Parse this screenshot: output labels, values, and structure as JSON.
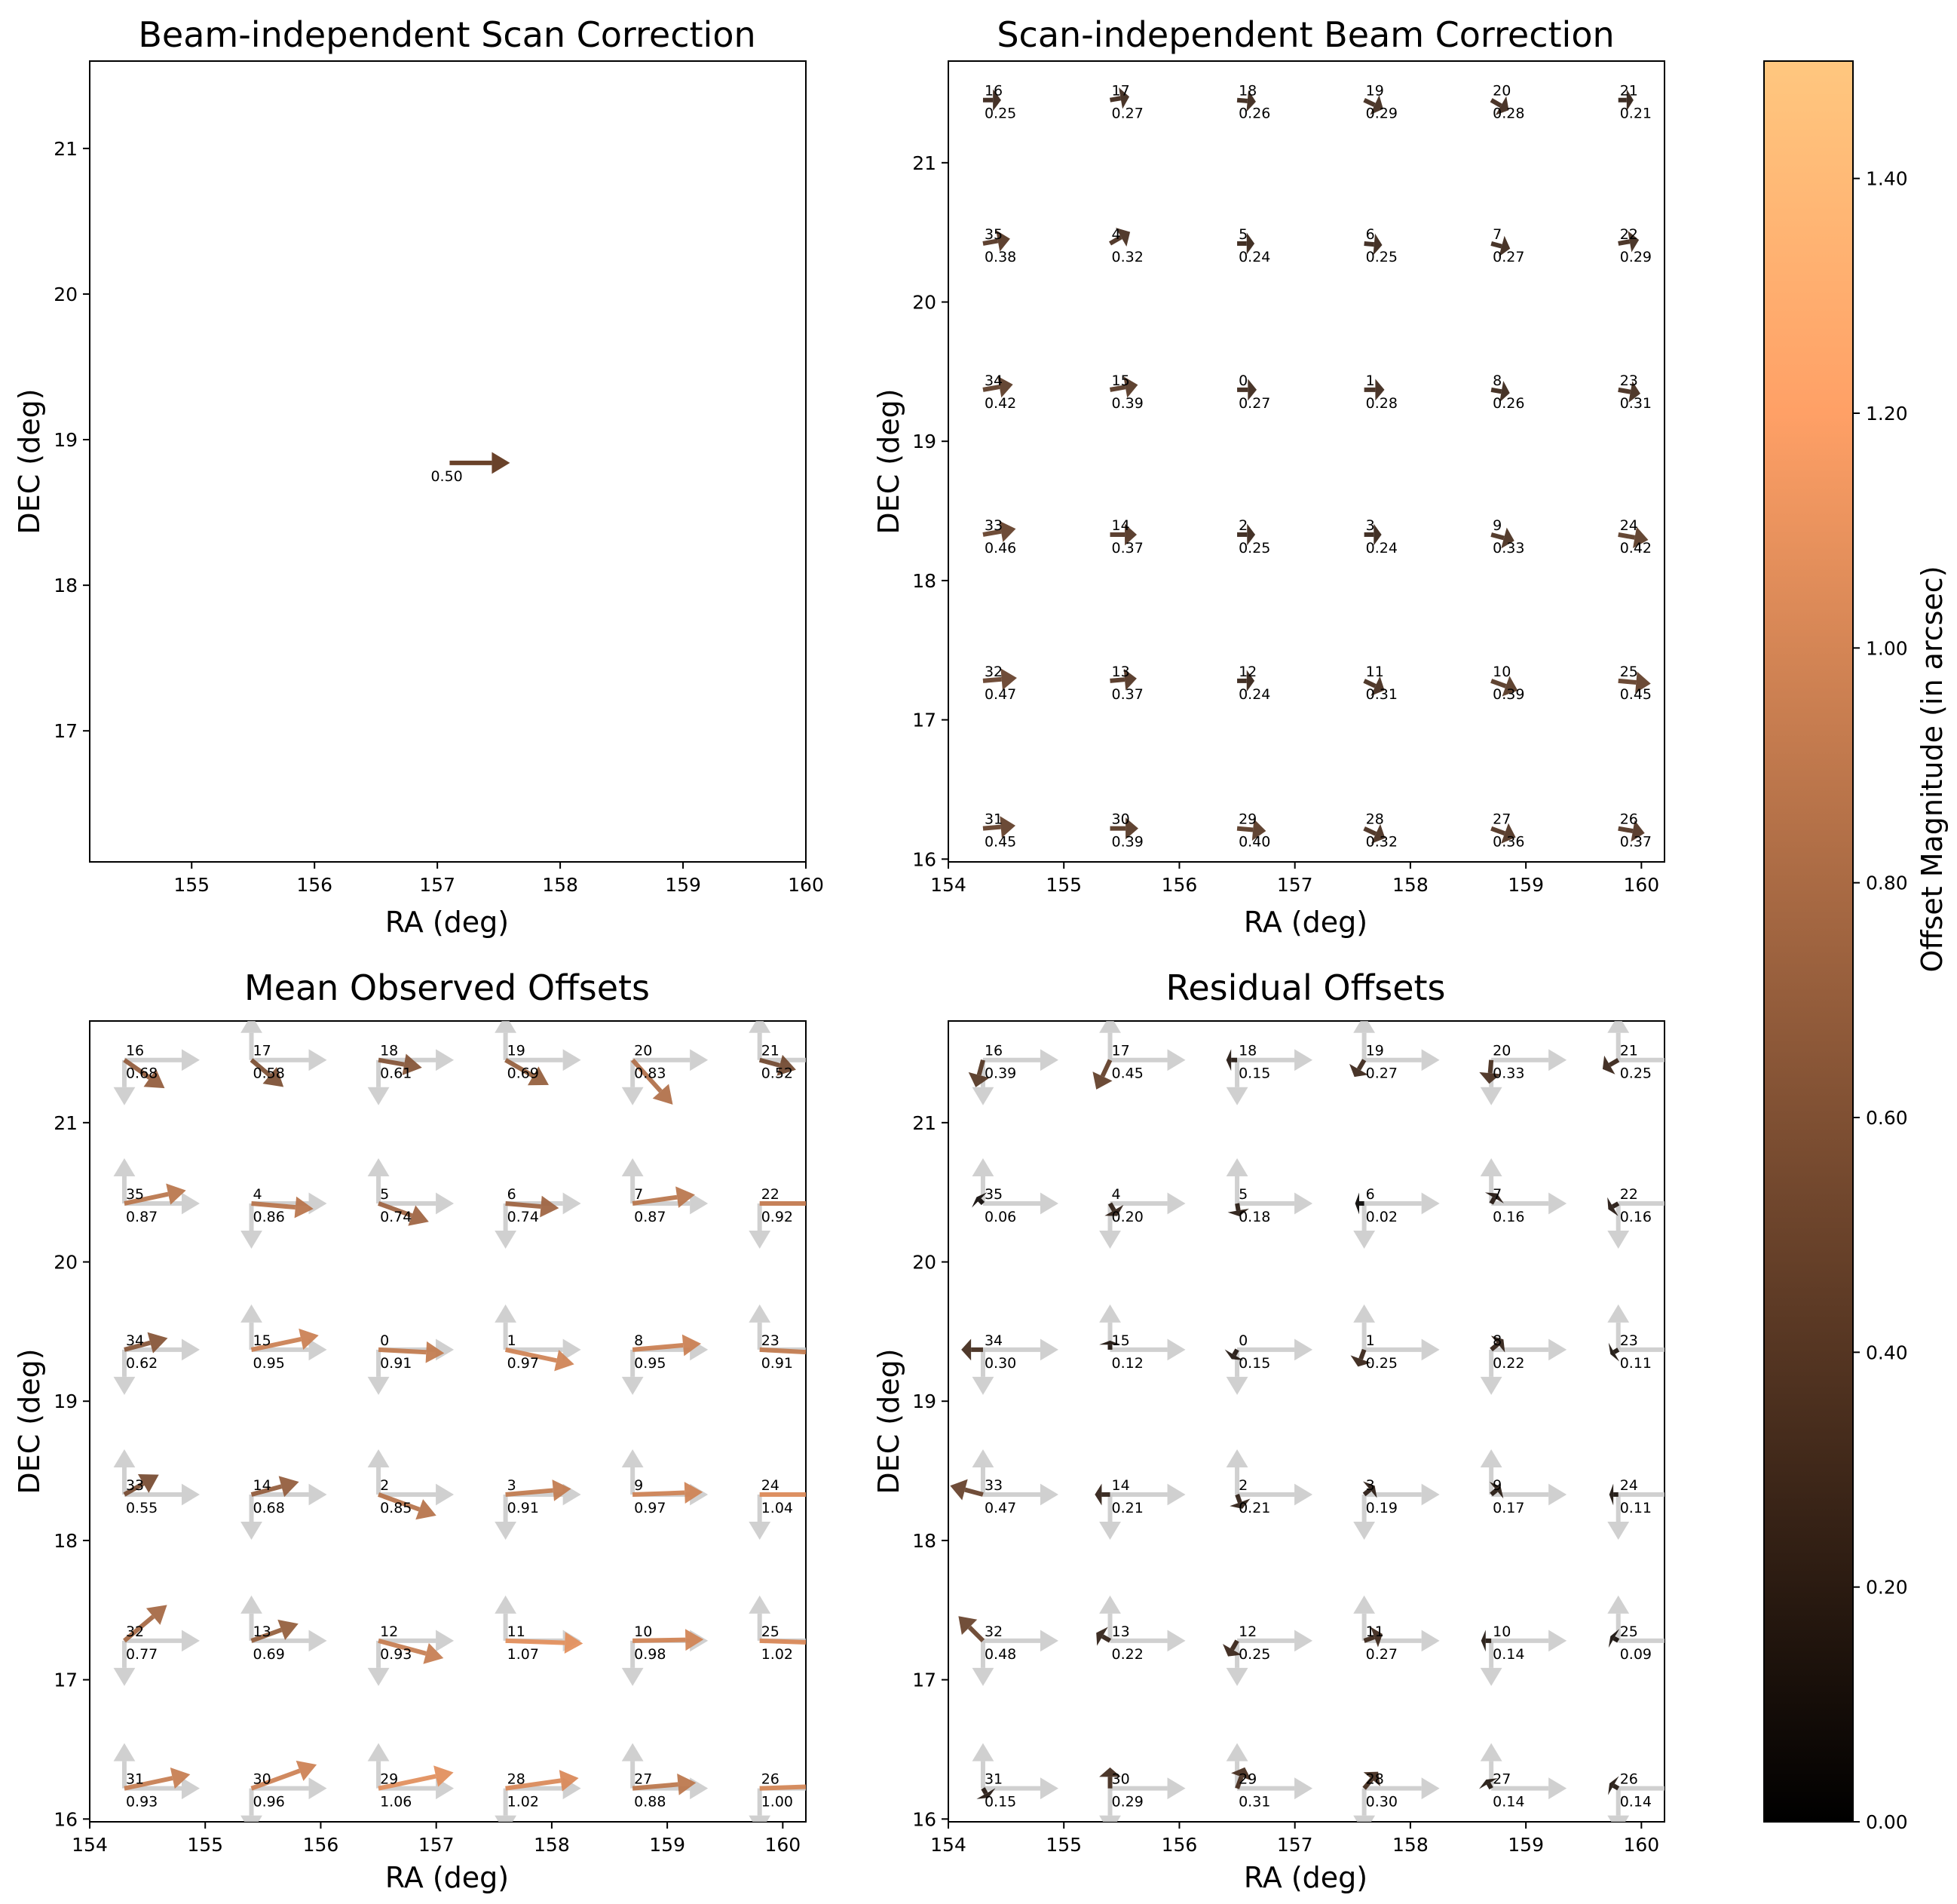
{
  "chart_data": {
    "type": "quiver",
    "colorbar": {
      "label": "Offset Magnitude (in arcsec)",
      "range": [
        0,
        1.5
      ],
      "ticks": [
        "0.00",
        "0.20",
        "0.40",
        "0.60",
        "0.80",
        "1.00",
        "1.20",
        "1.40"
      ],
      "colormap": "copper",
      "stops": [
        "#000000",
        "#ffc77f"
      ]
    },
    "axes_ranges": {
      "top_left": {
        "x": [
          154.17,
          160
        ],
        "y": [
          16.1,
          21.6
        ]
      },
      "others": {
        "x": [
          154,
          160.2
        ],
        "y": [
          15.98,
          21.73
        ]
      }
    },
    "x_ticks": [
      "154",
      "155",
      "156",
      "157",
      "158",
      "159",
      "160"
    ],
    "x_ticks_top_left": [
      "155",
      "156",
      "157",
      "158",
      "159",
      "160"
    ],
    "y_ticks": [
      "16",
      "17",
      "18",
      "19",
      "20",
      "21"
    ],
    "y_ticks_top_left": [
      "17",
      "18",
      "19",
      "20",
      "21"
    ],
    "grid": false,
    "panels": [
      {
        "id": "top_left",
        "title": "Beam-independent Scan Correction",
        "xlabel": "RA (deg)",
        "ylabel": "DEC (deg)",
        "vectors": [
          {
            "ra": 157.1,
            "dec": 18.84,
            "dx": 0.5,
            "dy": 0.0,
            "label": "0.50",
            "mag": 0.5
          }
        ]
      },
      {
        "id": "top_right",
        "title": "Scan-independent Beam Correction",
        "xlabel": "RA (deg)",
        "ylabel": "DEC (deg)",
        "grid_ra": [
          154.3,
          155.4,
          156.5,
          157.6,
          158.7,
          159.8
        ],
        "grid_dec": [
          21.45,
          20.42,
          19.37,
          18.33,
          17.28,
          16.22
        ],
        "beams": [
          [
            "16",
            "17",
            "18",
            "19",
            "20",
            "21"
          ],
          [
            "35",
            "4",
            "5",
            "6",
            "7",
            "22"
          ],
          [
            "34",
            "15",
            "0",
            "1",
            "8",
            "23"
          ],
          [
            "33",
            "14",
            "2",
            "3",
            "9",
            "24"
          ],
          [
            "32",
            "13",
            "12",
            "11",
            "10",
            "25"
          ],
          [
            "31",
            "30",
            "29",
            "28",
            "27",
            "26"
          ]
        ],
        "magnitudes": [
          [
            "0.25",
            "0.27",
            "0.26",
            "0.29",
            "0.28",
            "0.21"
          ],
          [
            "0.38",
            "0.32",
            "0.24",
            "0.25",
            "0.27",
            "0.29"
          ],
          [
            "0.42",
            "0.39",
            "0.27",
            "0.28",
            "0.26",
            "0.31"
          ],
          [
            "0.46",
            "0.37",
            "0.25",
            "0.24",
            "0.33",
            "0.42"
          ],
          [
            "0.47",
            "0.37",
            "0.24",
            "0.31",
            "0.39",
            "0.45"
          ],
          [
            "0.45",
            "0.39",
            "0.40",
            "0.32",
            "0.36",
            "0.37"
          ]
        ],
        "angles_deg": [
          [
            0,
            10,
            -5,
            -25,
            -30,
            0
          ],
          [
            10,
            30,
            0,
            -5,
            -15,
            10
          ],
          [
            10,
            10,
            0,
            0,
            -10,
            -10
          ],
          [
            10,
            0,
            0,
            0,
            -15,
            -10
          ],
          [
            5,
            5,
            0,
            -25,
            -20,
            -5
          ],
          [
            5,
            0,
            -5,
            -25,
            -20,
            -10
          ]
        ]
      },
      {
        "id": "bottom_left",
        "title": "Mean Observed Offsets",
        "xlabel": "RA (deg)",
        "ylabel": "DEC (deg)",
        "grid_ra": [
          154.3,
          155.4,
          156.5,
          157.6,
          158.7,
          159.8
        ],
        "grid_dec": [
          21.45,
          20.42,
          19.37,
          18.33,
          17.28,
          16.22
        ],
        "beams": [
          [
            "16",
            "17",
            "18",
            "19",
            "20",
            "21"
          ],
          [
            "35",
            "4",
            "5",
            "6",
            "7",
            "22"
          ],
          [
            "34",
            "15",
            "0",
            "1",
            "8",
            "23"
          ],
          [
            "33",
            "14",
            "2",
            "3",
            "9",
            "24"
          ],
          [
            "32",
            "13",
            "12",
            "11",
            "10",
            "25"
          ],
          [
            "31",
            "30",
            "29",
            "28",
            "27",
            "26"
          ]
        ],
        "magnitudes": [
          [
            "0.68",
            "0.58",
            "0.61",
            "0.69",
            "0.83",
            "0.52"
          ],
          [
            "0.87",
            "0.86",
            "0.74",
            "0.74",
            "0.87",
            "0.92"
          ],
          [
            "0.62",
            "0.95",
            "0.91",
            "0.97",
            "0.95",
            "0.91"
          ],
          [
            "0.55",
            "0.68",
            "0.85",
            "0.91",
            "0.97",
            "1.04"
          ],
          [
            "0.77",
            "0.69",
            "0.93",
            "1.07",
            "0.98",
            "1.02"
          ],
          [
            "0.93",
            "0.96",
            "1.06",
            "1.02",
            "0.88",
            "1.00"
          ]
        ],
        "angles_deg": [
          [
            -35,
            -40,
            -10,
            -30,
            -48,
            -15
          ],
          [
            12,
            -5,
            -20,
            -5,
            8,
            0
          ],
          [
            15,
            12,
            -3,
            -12,
            5,
            -3
          ],
          [
            30,
            15,
            -20,
            5,
            2,
            0
          ],
          [
            40,
            20,
            -15,
            -2,
            1,
            -2
          ],
          [
            12,
            20,
            12,
            8,
            5,
            2
          ]
        ],
        "reference_arrows_gray": true
      },
      {
        "id": "bottom_right",
        "title": "Residual Offsets",
        "xlabel": "RA (deg)",
        "ylabel": "DEC (deg)",
        "grid_ra": [
          154.3,
          155.4,
          156.5,
          157.6,
          158.7,
          159.8
        ],
        "grid_dec": [
          21.45,
          20.42,
          19.37,
          18.33,
          17.28,
          16.22
        ],
        "beams": [
          [
            "16",
            "17",
            "18",
            "19",
            "20",
            "21"
          ],
          [
            "35",
            "4",
            "5",
            "6",
            "7",
            "22"
          ],
          [
            "34",
            "15",
            "0",
            "1",
            "8",
            "23"
          ],
          [
            "33",
            "14",
            "2",
            "3",
            "9",
            "24"
          ],
          [
            "32",
            "13",
            "12",
            "11",
            "10",
            "25"
          ],
          [
            "31",
            "30",
            "29",
            "28",
            "27",
            "26"
          ]
        ],
        "magnitudes": [
          [
            "0.39",
            "0.45",
            "0.15",
            "0.27",
            "0.33",
            "0.25"
          ],
          [
            "0.06",
            "0.20",
            "0.18",
            "0.02",
            "0.16",
            "0.16"
          ],
          [
            "0.30",
            "0.12",
            "0.15",
            "0.25",
            "0.22",
            "0.11"
          ],
          [
            "0.47",
            "0.21",
            "0.21",
            "0.19",
            "0.17",
            "0.11"
          ],
          [
            "0.48",
            "0.22",
            "0.25",
            "0.27",
            "0.14",
            "0.09"
          ],
          [
            "0.15",
            "0.29",
            "0.31",
            "0.30",
            "0.14",
            "0.14"
          ]
        ],
        "angles_deg": [
          [
            -105,
            -115,
            180,
            -120,
            -95,
            -150
          ],
          [
            135,
            -60,
            -80,
            180,
            60,
            -150
          ],
          [
            180,
            90,
            -120,
            -110,
            40,
            -150
          ],
          [
            165,
            180,
            -70,
            40,
            40,
            180
          ],
          [
            135,
            150,
            -120,
            20,
            180,
            150
          ],
          [
            -60,
            90,
            70,
            50,
            120,
            150
          ]
        ],
        "reference_arrows_gray": true
      }
    ]
  }
}
